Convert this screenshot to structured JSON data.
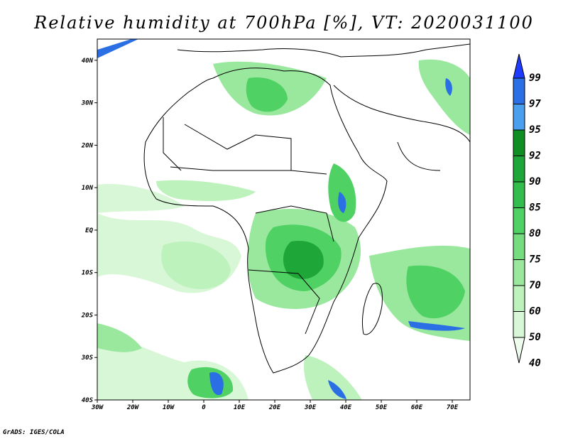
{
  "title": "Relative humidity at 700hPa [%], VT: 2020031100",
  "credit": "GrADS: IGES/COLA",
  "map": {
    "lon_labels": [
      "30W",
      "20W",
      "10W",
      "0",
      "10E",
      "20E",
      "30E",
      "40E",
      "50E",
      "60E",
      "70E"
    ],
    "lat_labels": [
      "40N",
      "30N",
      "20N",
      "10N",
      "EQ",
      "10S",
      "20S",
      "30S",
      "40S"
    ],
    "lon_values": [
      -30,
      -20,
      -10,
      0,
      10,
      20,
      30,
      40,
      50,
      60,
      70
    ],
    "lat_values": [
      40,
      30,
      20,
      10,
      0,
      -10,
      -20,
      -30,
      -40
    ]
  },
  "colorbar": {
    "levels": [
      "99",
      "97",
      "95",
      "92",
      "90",
      "85",
      "80",
      "75",
      "70",
      "60",
      "50",
      "40"
    ],
    "colors": [
      "#1e3cff",
      "#2a6fe3",
      "#4aa0ee",
      "#0f8e22",
      "#1fa638",
      "#33bd4c",
      "#4fd163",
      "#75dd7f",
      "#9ae89d",
      "#bdf2bd",
      "#d8f7d6",
      "#eefcee"
    ]
  },
  "shading_colors": {
    "light": "#d8f7d6",
    "lightmid": "#bdf2bd",
    "mid": "#9ae89d",
    "green": "#4fd163",
    "dark": "#1fa638",
    "blue": "#2a6fe3"
  }
}
